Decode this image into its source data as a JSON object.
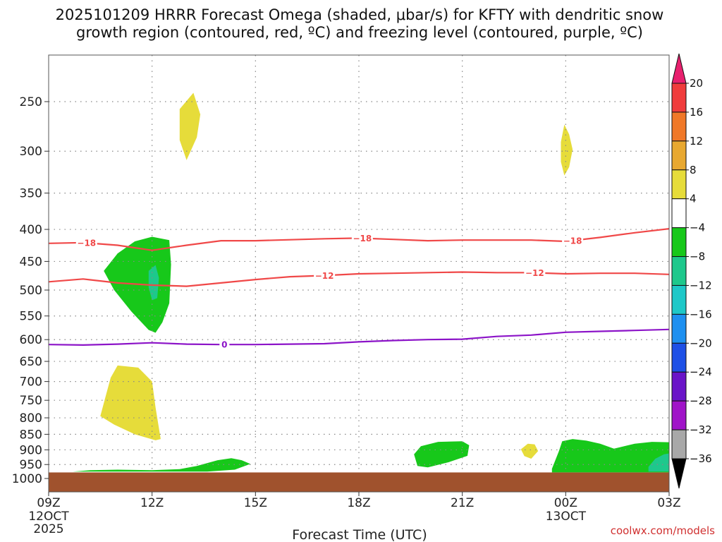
{
  "chart_data": {
    "type": "contour",
    "title_lines": [
      "2025101209 HRRR Forecast Omega (shaded, μbar/s) for KFTY with dendritic snow",
      "growth region (contoured, red, ºC) and freezing level (contoured, purple, ºC)"
    ],
    "xlabel": "Forecast Time (UTC)",
    "x_ticks": [
      {
        "hour": 0,
        "label": "09Z",
        "sub": [
          "12OCT",
          "2025"
        ]
      },
      {
        "hour": 3,
        "label": "12Z",
        "sub": []
      },
      {
        "hour": 6,
        "label": "15Z",
        "sub": []
      },
      {
        "hour": 9,
        "label": "18Z",
        "sub": []
      },
      {
        "hour": 12,
        "label": "21Z",
        "sub": []
      },
      {
        "hour": 15,
        "label": "00Z",
        "sub": [
          "13OCT"
        ]
      },
      {
        "hour": 18,
        "label": "03Z",
        "sub": []
      }
    ],
    "xlim_hours": [
      0,
      18
    ],
    "y_axis": "pressure_hPa",
    "y_ticks": [
      250,
      300,
      350,
      400,
      450,
      500,
      550,
      600,
      650,
      700,
      750,
      800,
      850,
      900,
      950,
      1000
    ],
    "grid": true,
    "colorbar": {
      "labels": [
        "20",
        "16",
        "12",
        "8",
        "4",
        "−4",
        "−8",
        "−12",
        "−16",
        "−20",
        "−24",
        "−28",
        "−32",
        "−36"
      ],
      "colors": [
        "#e8206e",
        "#f03c3c",
        "#f07828",
        "#e8a830",
        "#e6dc3a",
        "#ffffff",
        "#17c81a",
        "#1ec88c",
        "#1ec8c8",
        "#1e90f0",
        "#1e50e6",
        "#6a14c8",
        "#a014c8",
        "#a8a8a8",
        "#000000"
      ]
    },
    "contours": [
      {
        "name": "-18",
        "color": "#f04848",
        "label": "−18",
        "points": [
          [
            0,
            421
          ],
          [
            1,
            420
          ],
          [
            2,
            424
          ],
          [
            3,
            432
          ],
          [
            4,
            424
          ],
          [
            5,
            417
          ],
          [
            6,
            417
          ],
          [
            8,
            414
          ],
          [
            9,
            413
          ],
          [
            10,
            415
          ],
          [
            11,
            417
          ],
          [
            12,
            416
          ],
          [
            13,
            416
          ],
          [
            14,
            416
          ],
          [
            15,
            418
          ],
          [
            16,
            412
          ],
          [
            17,
            405
          ],
          [
            18,
            399
          ]
        ],
        "label_hours": [
          1.1,
          9.1,
          15.2
        ]
      },
      {
        "name": "-12",
        "color": "#f04848",
        "label": "−12",
        "points": [
          [
            0,
            485
          ],
          [
            1,
            480
          ],
          [
            2,
            487
          ],
          [
            3,
            491
          ],
          [
            4,
            493
          ],
          [
            5,
            487
          ],
          [
            6,
            481
          ],
          [
            7,
            476
          ],
          [
            8,
            474
          ],
          [
            9,
            471
          ],
          [
            10,
            470
          ],
          [
            11,
            469
          ],
          [
            12,
            468
          ],
          [
            13,
            469
          ],
          [
            14,
            469
          ],
          [
            15,
            471
          ],
          [
            16,
            470
          ],
          [
            17,
            470
          ],
          [
            18,
            472
          ]
        ],
        "label_hours": [
          8.0,
          14.1
        ]
      },
      {
        "name": "0",
        "color": "#8c14c8",
        "label": "0",
        "points": [
          [
            0,
            611
          ],
          [
            1,
            612
          ],
          [
            2,
            610
          ],
          [
            3,
            607
          ],
          [
            4,
            610
          ],
          [
            5,
            611
          ],
          [
            6,
            611
          ],
          [
            7,
            610
          ],
          [
            8,
            609
          ],
          [
            9,
            605
          ],
          [
            10,
            602
          ],
          [
            11,
            600
          ],
          [
            12,
            599
          ],
          [
            13,
            593
          ],
          [
            14,
            590
          ],
          [
            15,
            584
          ],
          [
            16,
            582
          ],
          [
            17,
            580
          ],
          [
            18,
            578
          ]
        ],
        "label_hours": [
          5.1
        ]
      }
    ],
    "shaded_regions": [
      {
        "value_bin": "4 to 8",
        "color": "#e6dc3a",
        "points": [
          [
            3.8,
            257
          ],
          [
            4.2,
            242
          ],
          [
            4.4,
            262
          ],
          [
            4.3,
            285
          ],
          [
            4.0,
            310
          ],
          [
            3.8,
            288
          ]
        ]
      },
      {
        "value_bin": "4 to 8",
        "color": "#e6dc3a",
        "points": [
          [
            14.96,
            272
          ],
          [
            15.1,
            282
          ],
          [
            15.2,
            298
          ],
          [
            15.1,
            318
          ],
          [
            14.96,
            328
          ],
          [
            14.86,
            312
          ],
          [
            14.86,
            290
          ]
        ]
      },
      {
        "value_bin": "-4 to -8",
        "color": "#17c81a",
        "points": [
          [
            1.6,
            466
          ],
          [
            2.0,
            437
          ],
          [
            2.5,
            418
          ],
          [
            3.0,
            411
          ],
          [
            3.5,
            416
          ],
          [
            3.55,
            455
          ],
          [
            3.5,
            525
          ],
          [
            3.3,
            563
          ],
          [
            3.1,
            585
          ],
          [
            2.9,
            579
          ],
          [
            2.4,
            541
          ],
          [
            1.9,
            500
          ]
        ]
      },
      {
        "value_bin": "-8 to -12",
        "color": "#1ec88c",
        "points": [
          [
            2.9,
            466
          ],
          [
            3.1,
            456
          ],
          [
            3.2,
            478
          ],
          [
            3.15,
            515
          ],
          [
            3.0,
            519
          ],
          [
            2.9,
            495
          ]
        ]
      },
      {
        "value_bin": "4 to 8",
        "color": "#e6dc3a",
        "points": [
          [
            2.0,
            660
          ],
          [
            2.6,
            665
          ],
          [
            3.0,
            700
          ],
          [
            3.1,
            770
          ],
          [
            3.25,
            865
          ],
          [
            3.1,
            869
          ],
          [
            2.5,
            850
          ],
          [
            1.9,
            820
          ],
          [
            1.5,
            795
          ],
          [
            1.65,
            740
          ],
          [
            1.8,
            690
          ]
        ]
      },
      {
        "value_bin": "-4 to -8",
        "color": "#17c81a",
        "points": [
          [
            0.7,
            975
          ],
          [
            1.2,
            970
          ],
          [
            2.0,
            968
          ],
          [
            3.0,
            970
          ],
          [
            3.8,
            966
          ],
          [
            4.3,
            955
          ],
          [
            4.9,
            935
          ],
          [
            5.3,
            928
          ],
          [
            5.6,
            935
          ],
          [
            5.85,
            948
          ],
          [
            5.4,
            968
          ],
          [
            4.6,
            975
          ]
        ]
      },
      {
        "value_bin": "-4 to -8",
        "color": "#17c81a",
        "points": [
          [
            10.6,
            915
          ],
          [
            10.8,
            888
          ],
          [
            11.3,
            874
          ],
          [
            12.0,
            872
          ],
          [
            12.2,
            885
          ],
          [
            12.15,
            920
          ],
          [
            11.6,
            942
          ],
          [
            11.0,
            960
          ],
          [
            10.7,
            955
          ]
        ]
      },
      {
        "value_bin": "4 to 8",
        "color": "#e6dc3a",
        "points": [
          [
            13.7,
            898
          ],
          [
            13.9,
            880
          ],
          [
            14.1,
            882
          ],
          [
            14.2,
            904
          ],
          [
            14.0,
            930
          ],
          [
            13.8,
            921
          ]
        ]
      },
      {
        "value_bin": "-4 to -8",
        "color": "#17c81a",
        "points": [
          [
            14.6,
            965
          ],
          [
            14.8,
            905
          ],
          [
            14.9,
            872
          ],
          [
            15.2,
            865
          ],
          [
            15.6,
            870
          ],
          [
            16.0,
            880
          ],
          [
            16.4,
            896
          ],
          [
            17.0,
            880
          ],
          [
            17.5,
            874
          ],
          [
            18.0,
            875
          ],
          [
            18.0,
            978
          ],
          [
            14.6,
            978
          ]
        ]
      },
      {
        "value_bin": "-8 to -12",
        "color": "#1ec88c",
        "points": [
          [
            17.4,
            958
          ],
          [
            17.6,
            930
          ],
          [
            17.85,
            915
          ],
          [
            18.0,
            912
          ],
          [
            18.0,
            975
          ],
          [
            17.4,
            975
          ]
        ]
      }
    ],
    "surface_fill": {
      "color": "#a0522d",
      "from_hPa": 978,
      "to_hPa": 1040
    },
    "credit": "coolwx.com/models"
  }
}
